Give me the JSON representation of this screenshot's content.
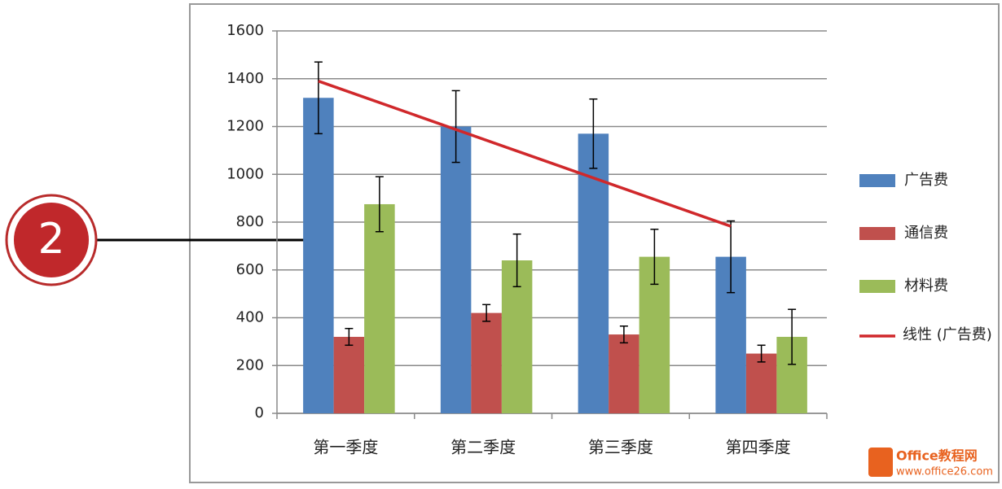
{
  "chart_data": {
    "type": "bar",
    "categories": [
      "第一季度",
      "第二季度",
      "第三季度",
      "第四季度"
    ],
    "series": [
      {
        "name": "广告费",
        "color": "#4f81bd",
        "values": [
          1320,
          1200,
          1170,
          655
        ],
        "errors": [
          150,
          150,
          145,
          150
        ]
      },
      {
        "name": "通信费",
        "color": "#c0504d",
        "values": [
          320,
          420,
          330,
          250
        ],
        "errors": [
          35,
          35,
          35,
          35
        ]
      },
      {
        "name": "材料费",
        "color": "#9bbb59",
        "values": [
          875,
          640,
          655,
          320
        ],
        "errors": [
          115,
          110,
          115,
          115
        ]
      }
    ],
    "trendline": {
      "name": "线性 (广告费)",
      "kind": "linear",
      "series": 0,
      "color": "#d0282b"
    },
    "ylim": [
      0,
      1600
    ],
    "yticks": [
      0,
      200,
      400,
      600,
      800,
      1000,
      1200,
      1400,
      1600
    ],
    "grid": true,
    "legend": "right",
    "annotation": "2",
    "watermark": {
      "title": "Office教程网",
      "url": "www.office26.com"
    }
  }
}
